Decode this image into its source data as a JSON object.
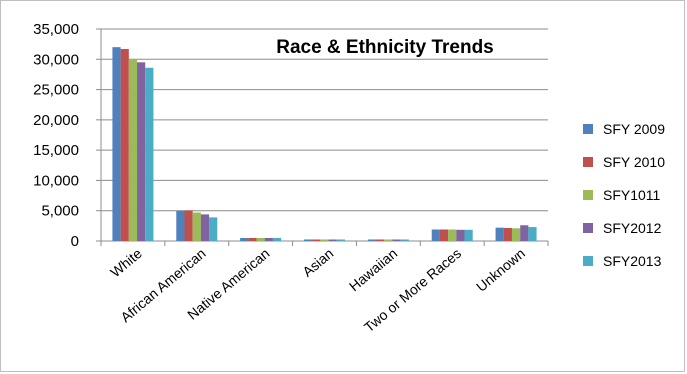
{
  "chart_data": {
    "type": "bar",
    "title": "Race & Ethnicity Trends",
    "xlabel": "",
    "ylabel": "",
    "ylim": [
      0,
      35000
    ],
    "yticks": [
      "0",
      "5,000",
      "10,000",
      "15,000",
      "20,000",
      "25,000",
      "30,000",
      "35,000"
    ],
    "ytick_values": [
      0,
      5000,
      10000,
      15000,
      20000,
      25000,
      30000,
      35000
    ],
    "grid": true,
    "legend_position": "right",
    "categories": [
      "White",
      "African American",
      "Native American",
      "Asian",
      "Hawaiian",
      "Two or More Races",
      "Unknown"
    ],
    "series": [
      {
        "name": "SFY 2009",
        "color": "#4f81bd",
        "values": [
          32000,
          5000,
          500,
          250,
          250,
          1900,
          2200
        ]
      },
      {
        "name": "SFY 2010",
        "color": "#c0504d",
        "values": [
          31700,
          5050,
          500,
          250,
          250,
          1900,
          2150
        ]
      },
      {
        "name": "SFY1011",
        "color": "#9bbb59",
        "values": [
          29900,
          4700,
          500,
          250,
          250,
          1900,
          2100
        ]
      },
      {
        "name": "SFY2012",
        "color": "#8064a2",
        "values": [
          29500,
          4400,
          500,
          250,
          250,
          1850,
          2600
        ]
      },
      {
        "name": "SFY2013",
        "color": "#4bacc6",
        "values": [
          28600,
          3900,
          500,
          250,
          250,
          1850,
          2300
        ]
      }
    ]
  }
}
